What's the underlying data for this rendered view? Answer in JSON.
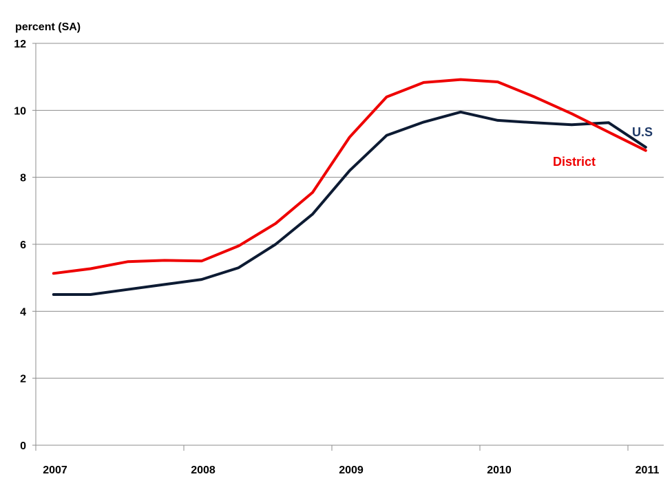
{
  "chart_data": {
    "type": "line",
    "ylabel": "percent (SA)",
    "ylim": [
      0,
      12
    ],
    "yticks": [
      0,
      2,
      4,
      6,
      8,
      10,
      12
    ],
    "xlim": [
      2007,
      2011.25
    ],
    "xticks": [
      "2007",
      "2008",
      "2009",
      "2010",
      "2011"
    ],
    "grid": "horizontal",
    "legend": "inline-labels-right",
    "series": [
      {
        "name": "U.S",
        "color": "#0d1b33",
        "x": [
          2007.12,
          2007.37,
          2007.62,
          2007.87,
          2008.12,
          2008.37,
          2008.62,
          2008.87,
          2009.12,
          2009.37,
          2009.62,
          2009.87,
          2010.12,
          2010.37,
          2010.62,
          2010.87,
          2011.12
        ],
        "values": [
          4.5,
          4.5,
          4.65,
          4.8,
          4.95,
          5.3,
          6.0,
          6.9,
          8.2,
          9.25,
          9.65,
          9.95,
          9.7,
          9.63,
          9.57,
          9.63,
          8.9
        ]
      },
      {
        "name": "District",
        "color": "#ee0000",
        "x": [
          2007.12,
          2007.37,
          2007.62,
          2007.87,
          2008.12,
          2008.37,
          2008.62,
          2008.87,
          2009.12,
          2009.37,
          2009.62,
          2009.87,
          2010.12,
          2010.37,
          2010.62,
          2010.87,
          2011.12
        ],
        "values": [
          5.13,
          5.27,
          5.48,
          5.52,
          5.5,
          5.95,
          6.62,
          7.55,
          9.2,
          10.4,
          10.83,
          10.92,
          10.85,
          10.4,
          9.9,
          9.35,
          8.8
        ]
      }
    ]
  }
}
